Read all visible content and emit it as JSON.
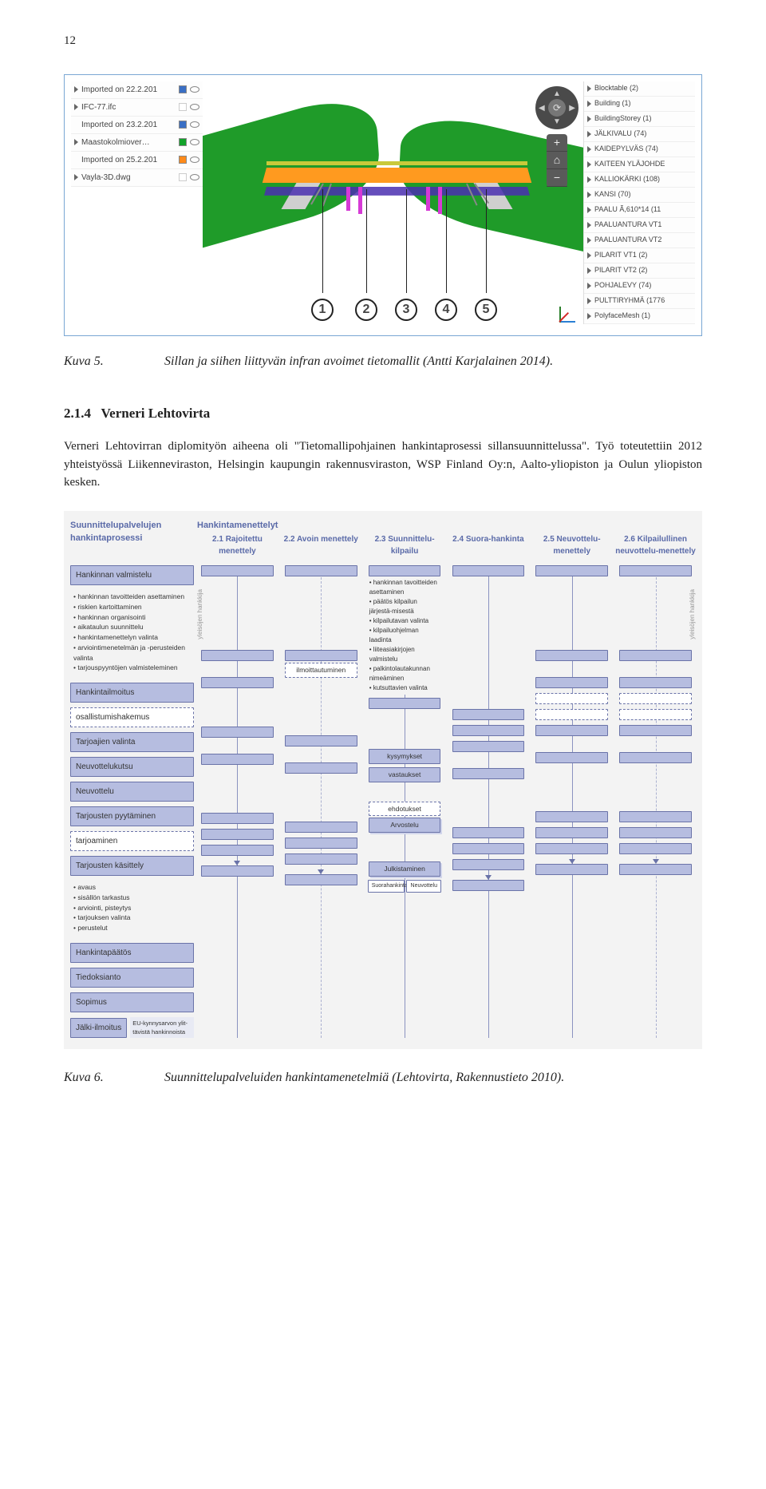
{
  "page_number": "12",
  "fig1": {
    "left_layers": [
      {
        "label": "Imported on 22.2.201",
        "swatch": "#3a6fc4",
        "expandable": true
      },
      {
        "label": "IFC-77.ifc",
        "swatch": null,
        "expandable": true
      },
      {
        "label": "Imported on 23.2.201",
        "swatch": "#3a6fc4",
        "expandable": false
      },
      {
        "label": "Maastokolmiover…",
        "swatch": "#12a22a",
        "expandable": true
      },
      {
        "label": "Imported on 25.2.201",
        "swatch": "#ff8a1a",
        "expandable": false
      },
      {
        "label": "Vayla-3D.dwg",
        "swatch": null,
        "expandable": true
      }
    ],
    "right_layers": [
      "Blocktable (2)",
      "Building (1)",
      "BuildingStorey (1)",
      "JÄLKIVALU (74)",
      "KAIDEPYLVÄS (74)",
      "KAITEEN YLÄJOHDE",
      "KALLIOKÄRKI (108)",
      "KANSI (70)",
      "PAALU Ã,610*14 (11",
      "PAALUANTURA VT1",
      "PAALUANTURA VT2",
      "PILARIT VT1 (2)",
      "PILARIT VT2 (2)",
      "POHJALEVY (74)",
      "PULTTIRYHMÄ (1776",
      "PolyfaceMesh (1)"
    ],
    "callouts": [
      "1",
      "2",
      "3",
      "4",
      "5"
    ],
    "colors": {
      "terrain": "#1f9b29",
      "deck": "#ff9a1f",
      "rail": "#c9c93a",
      "shade": "#4a2fb0",
      "pile": "#d63ad6",
      "abutment": "#cfcfcf",
      "nav_bg": "#4a4a4a"
    }
  },
  "caption1": {
    "num": "Kuva 5.",
    "text": "Sillan ja siihen liittyvän infran avoimet tietomallit (Antti Karjalainen 2014)."
  },
  "section": {
    "num": "2.1.4",
    "title": "Verneri Lehtovirta"
  },
  "body_para": "Verneri Lehtovirran diplomityön aiheena oli \"Tietomallipohjainen hankintaprosessi sillansuunnittelussa\". Työ toteutettiin 2012 yhteistyössä Liikenneviraston, Helsingin kaupungin rakennusviraston, WSP Finland Oy:n, Aalto-yliopiston ja Oulun yliopiston kesken.",
  "fig2": {
    "left_title": "Suunnittelupalvelujen hankintaprosessi",
    "group_title": "Hankintamenettelyt",
    "columns": [
      "2.1 Rajoitettu menettely",
      "2.2 Avoin menettely",
      "2.3 Suunnittelu-kilpailu",
      "2.4 Suora-hankinta",
      "2.5 Neuvottelu-menettely",
      "2.6 Kilpailullinen neuvottelu-menettely"
    ],
    "stages": [
      "Hankinnan valmistelu",
      "Hankintailmoitus",
      "Tarjoajien valinta",
      "Neuvottelukutsu",
      "Neuvottelu",
      "Tarjousten pyytäminen",
      "Tarjousten käsittely",
      "Hankintapäätös",
      "Tiedoksianto",
      "Sopimus",
      "Jälki-ilmoitus"
    ],
    "valmistelu_bullets": [
      "hankinnan tavoitteiden asettaminen",
      "riskien kartoittaminen",
      "hankinnan organisointi",
      "aikataulun suunnittelu",
      "hankintamenettelyn valinta",
      "arviointimenetelmän ja -perusteiden valinta",
      "tarjouspyyntöjen valmisteleminen"
    ],
    "kilpailu_bullets": [
      "hankinnan tavoitteiden asettaminen",
      "päätös kilpailun järjestä-misestä",
      "kilpailutavan valinta",
      "kilpailuohjelman laadinta",
      "liiteasiakirjojen valmistelu",
      "palkintolautakunnan nimeäminen",
      "kutsuttavien valinta"
    ],
    "kasittely_bullets": [
      "avaus",
      "sisällön tarkastus",
      "arviointi, pisteytys",
      "tarjouksen valinta",
      "perustelut"
    ],
    "inline": {
      "osallistumishakemus": "osallistumishakemus",
      "ilmoittautuminen": "ilmoittautuminen",
      "kysymykset": "kysymykset",
      "vastaukset": "vastaukset",
      "tarjoaminen": "tarjoaminen",
      "ehdotukset": "ehdotukset",
      "arvostelu": "Arvostelu",
      "julkistaminen": "Julkistaminen",
      "suorahankinta": "Suorahankinta",
      "neuvottelu": "Neuvottelu",
      "jalki_note": "EU-kynnysarvon ylit-tävistä hankinnoista"
    },
    "vlabels": {
      "left": "yleisöjen hankkija",
      "right": "yleisöjen hankkija"
    },
    "colors": {
      "heading": "#5a6aa8",
      "box": "#b6bde0",
      "box_border": "#6a73a8",
      "bg": "#f3f3f3"
    }
  },
  "caption2": {
    "num": "Kuva 6.",
    "text": "Suunnittelupalveluiden hankintamenetelmiä (Lehtovirta, Rakennustieto 2010)."
  }
}
